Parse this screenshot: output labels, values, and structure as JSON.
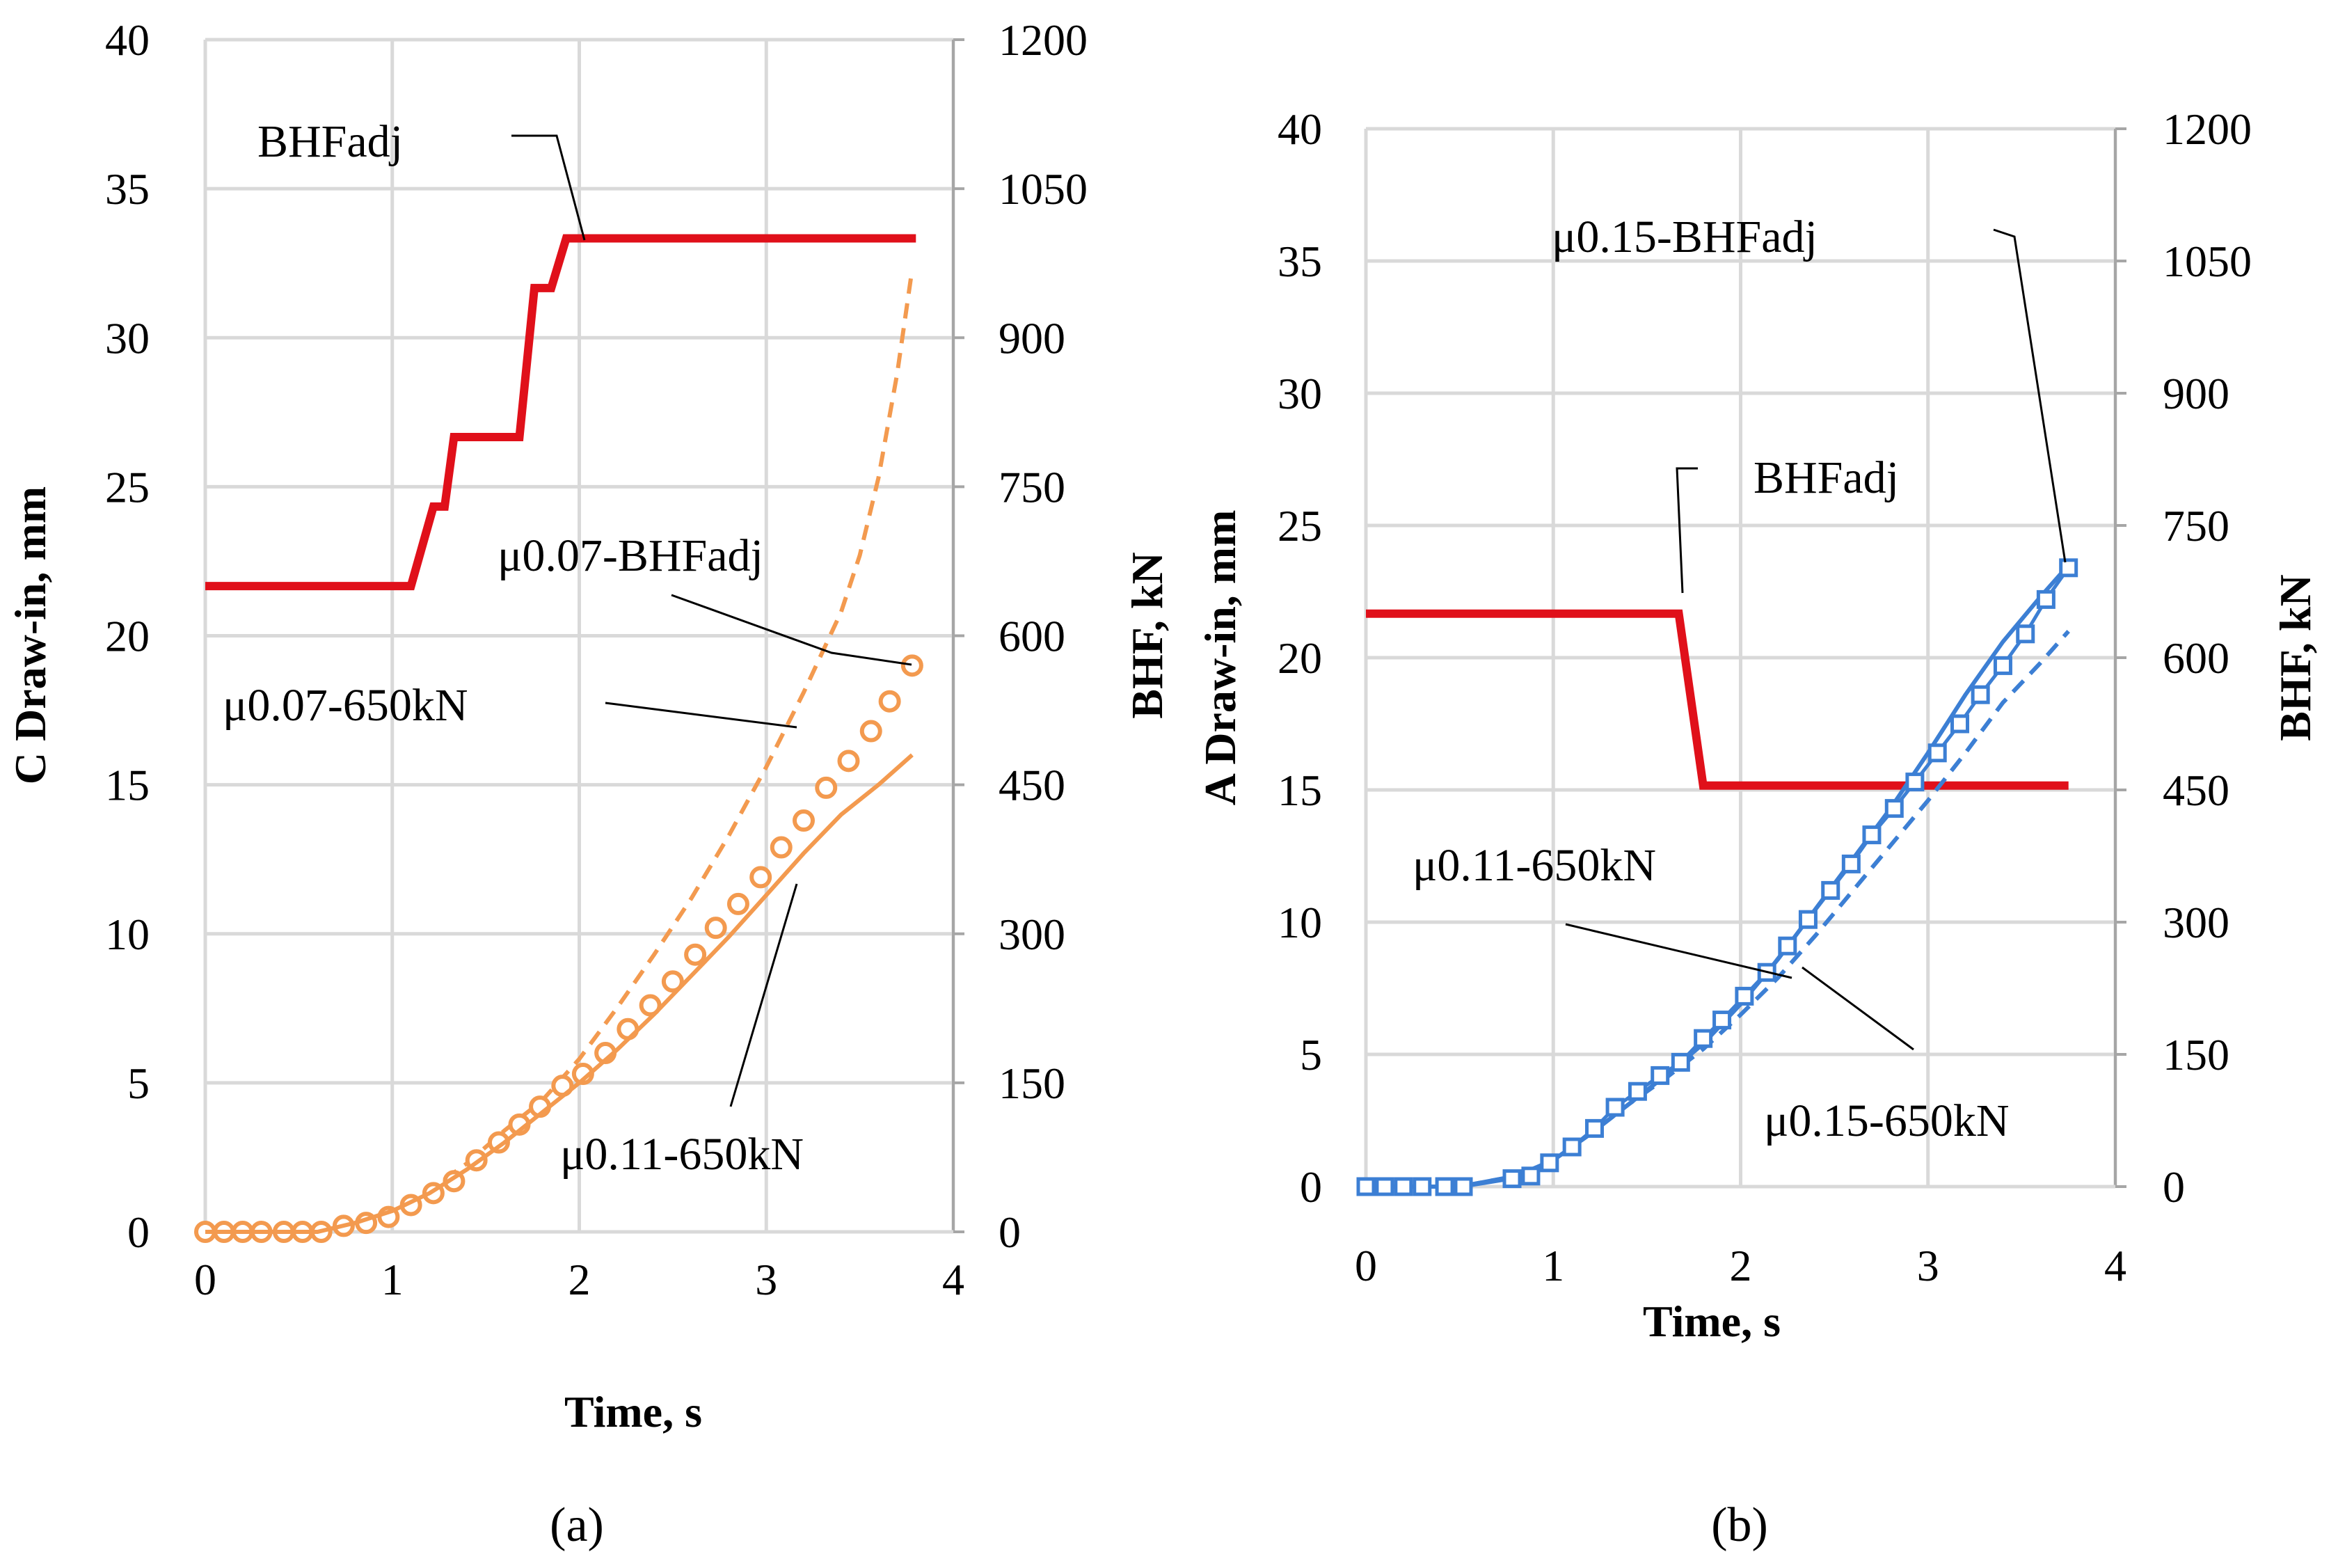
{
  "chart_data": [
    {
      "panel_label": "(a)",
      "type": "line",
      "xlabel": "Time, s",
      "ylabel": "C Draw-in, mm",
      "y2label": "BHF, kN",
      "xlim": [
        0,
        4
      ],
      "ylim": [
        0,
        40
      ],
      "y2lim": [
        0,
        1200
      ],
      "xticks": [
        "0",
        "1",
        "2",
        "3",
        "4"
      ],
      "yticks": [
        "0",
        "5",
        "10",
        "15",
        "20",
        "25",
        "30",
        "35",
        "40"
      ],
      "y2ticks": [
        "0",
        "150",
        "300",
        "450",
        "600",
        "750",
        "900",
        "1050",
        "1200"
      ],
      "series": [
        {
          "name": "BHFadj",
          "axis": "y2",
          "color": "#e0101a",
          "style": "solid-thick",
          "x": [
            0,
            1.1,
            1.22,
            1.28,
            1.33,
            1.68,
            1.76,
            1.85,
            1.93,
            2.02,
            3.8
          ],
          "values": [
            650,
            650,
            730,
            730,
            800,
            800,
            950,
            950,
            1000,
            1000,
            1000
          ]
        },
        {
          "name": "μ0.07-650kN",
          "axis": "y",
          "color": "#f39a4f",
          "style": "dashed",
          "x": [
            0,
            0.6,
            0.8,
            1.0,
            1.2,
            1.4,
            1.6,
            1.8,
            2.0,
            2.2,
            2.4,
            2.6,
            2.8,
            3.0,
            3.2,
            3.4,
            3.5,
            3.6,
            3.7,
            3.78
          ],
          "values": [
            0,
            0,
            0.3,
            0.7,
            1.4,
            2.3,
            3.4,
            4.4,
            5.8,
            7.5,
            9.3,
            11.2,
            13.3,
            15.6,
            18.1,
            20.8,
            22.7,
            25.3,
            28.8,
            32.3
          ]
        },
        {
          "name": "μ0.07-BHFadj",
          "axis": "y",
          "color": "#f39a4f",
          "style": "circles",
          "x": [
            0,
            0.1,
            0.2,
            0.3,
            0.42,
            0.52,
            0.62,
            0.74,
            0.86,
            0.98,
            1.1,
            1.22,
            1.33,
            1.45,
            1.57,
            1.68,
            1.79,
            1.91,
            2.02,
            2.14,
            2.26,
            2.38,
            2.5,
            2.62,
            2.73,
            2.85,
            2.97,
            3.08,
            3.2,
            3.32,
            3.44,
            3.56,
            3.66,
            3.78
          ],
          "values": [
            0,
            0,
            0,
            0,
            0,
            0,
            0,
            0.2,
            0.3,
            0.5,
            0.9,
            1.3,
            1.7,
            2.4,
            3.0,
            3.6,
            4.2,
            4.9,
            5.3,
            6.0,
            6.8,
            7.6,
            8.4,
            9.3,
            10.2,
            11.0,
            11.9,
            12.9,
            13.8,
            14.9,
            15.8,
            16.8,
            17.8,
            19.0
          ]
        },
        {
          "name": "μ0.11-650kN",
          "axis": "y",
          "color": "#f39a4f",
          "style": "solid",
          "x": [
            0,
            0.6,
            0.8,
            1.0,
            1.2,
            1.4,
            1.6,
            1.8,
            2.0,
            2.2,
            2.4,
            2.6,
            2.8,
            3.0,
            3.2,
            3.4,
            3.6,
            3.78
          ],
          "values": [
            0,
            0,
            0.3,
            0.7,
            1.3,
            2.1,
            3.0,
            4.0,
            5.0,
            6.1,
            7.3,
            8.6,
            9.9,
            11.3,
            12.7,
            14.0,
            15.0,
            16.0
          ]
        }
      ],
      "annotations": [
        {
          "text": "BHFadj"
        },
        {
          "text": "μ0.07-BHFadj"
        },
        {
          "text": "μ0.07-650kN"
        },
        {
          "text": "μ0.11-650kN"
        }
      ]
    },
    {
      "panel_label": "(b)",
      "type": "line",
      "xlabel": "Time, s",
      "ylabel": "A Draw-in, mm",
      "y2label": "BHF, kN",
      "xlim": [
        0,
        4
      ],
      "ylim": [
        0,
        40
      ],
      "y2lim": [
        0,
        1200
      ],
      "xticks": [
        "0",
        "1",
        "2",
        "3",
        "4"
      ],
      "yticks": [
        "0",
        "5",
        "10",
        "15",
        "20",
        "25",
        "30",
        "35",
        "40"
      ],
      "y2ticks": [
        "0",
        "150",
        "300",
        "450",
        "600",
        "750",
        "900",
        "1050",
        "1200"
      ],
      "series": [
        {
          "name": "BHFadj",
          "axis": "y2",
          "color": "#e0101a",
          "style": "solid-thick",
          "x": [
            0,
            1.67,
            1.8,
            3.75
          ],
          "values": [
            650,
            650,
            455,
            455
          ]
        },
        {
          "name": "μ0.11-650kN",
          "axis": "y",
          "color": "#3c7fd4",
          "style": "solid",
          "x": [
            0,
            0.5,
            0.8,
            1.0,
            1.2,
            1.4,
            1.6,
            1.8,
            2.0,
            2.2,
            2.4,
            2.6,
            2.8,
            3.0,
            3.2,
            3.4,
            3.6,
            3.75
          ],
          "values": [
            0,
            0,
            0.4,
            1.0,
            2.0,
            3.1,
            4.2,
            5.4,
            6.9,
            8.6,
            10.5,
            12.4,
            14.3,
            16.4,
            18.6,
            20.6,
            22.3,
            23.5
          ]
        },
        {
          "name": "μ0.15-650kN",
          "axis": "y",
          "color": "#3c7fd4",
          "style": "dashed",
          "x": [
            0,
            0.5,
            0.8,
            1.0,
            1.2,
            1.4,
            1.6,
            1.8,
            2.0,
            2.2,
            2.4,
            2.6,
            2.8,
            3.0,
            3.2,
            3.4,
            3.6,
            3.75
          ],
          "values": [
            0,
            0,
            0.4,
            1.0,
            2.0,
            3.1,
            4.1,
            5.2,
            6.5,
            7.9,
            9.5,
            11.2,
            12.9,
            14.6,
            16.4,
            18.3,
            19.8,
            21.0
          ]
        },
        {
          "name": "μ0.15-BHFadj",
          "axis": "y",
          "color": "#3c7fd4",
          "style": "squares",
          "x": [
            0,
            0.1,
            0.2,
            0.3,
            0.42,
            0.52,
            0.78,
            0.88,
            0.98,
            1.1,
            1.22,
            1.33,
            1.45,
            1.57,
            1.68,
            1.8,
            1.9,
            2.02,
            2.14,
            2.25,
            2.36,
            2.48,
            2.59,
            2.7,
            2.82,
            2.93,
            3.05,
            3.17,
            3.28,
            3.4,
            3.52,
            3.63,
            3.75
          ],
          "values": [
            0,
            0,
            0,
            0,
            0,
            0,
            0.3,
            0.4,
            0.9,
            1.5,
            2.2,
            3.0,
            3.6,
            4.2,
            4.7,
            5.6,
            6.3,
            7.2,
            8.1,
            9.1,
            10.1,
            11.2,
            12.2,
            13.3,
            14.3,
            15.3,
            16.4,
            17.5,
            18.6,
            19.7,
            20.9,
            22.2,
            23.4
          ]
        }
      ],
      "annotations": [
        {
          "text": "μ0.15-BHFadj"
        },
        {
          "text": "BHFadj"
        },
        {
          "text": "μ0.11-650kN"
        },
        {
          "text": "μ0.15-650kN"
        }
      ]
    }
  ]
}
